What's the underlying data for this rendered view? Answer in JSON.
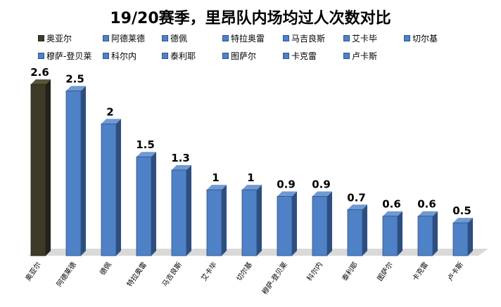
{
  "colors": {
    "first_bar": "#3d3a28",
    "bar": "#4f81c7",
    "bar_side": "#2d4f80",
    "bar_top": "#6f9ad4",
    "floor": "#d9d9d9"
  },
  "chart_data": {
    "type": "bar",
    "title": "19/20赛季，里昂队内场均过人次数对比",
    "categories": [
      "奥亚尔",
      "阿德莱德",
      "德佩",
      "特拉奥雷",
      "马吉良斯",
      "艾卡毕",
      "切尔基",
      "穆萨-登贝莱",
      "科尔内",
      "泰利耶",
      "图萨尔",
      "卡克雷",
      "卢卡斯"
    ],
    "values": [
      2.6,
      2.5,
      2.0,
      1.5,
      1.3,
      1.0,
      1.0,
      0.9,
      0.9,
      0.7,
      0.6,
      0.6,
      0.5
    ],
    "value_labels": [
      "2.6",
      "2.5",
      "2",
      "1.5",
      "1.3",
      "1",
      "1",
      "0.9",
      "0.9",
      "0.7",
      "0.6",
      "0.6",
      "0.5"
    ],
    "legend": [
      "奥亚尔",
      "阿德莱德",
      "德佩",
      "特拉奥雷",
      "马吉良斯",
      "艾卡毕",
      "切尔基",
      "穆萨-登贝莱",
      "科尔内",
      "泰利耶",
      "图萨尔",
      "卡克雷",
      "卢卡斯"
    ],
    "legend_position": "top",
    "grid": false,
    "xlabel": "",
    "ylabel": "",
    "ylim": [
      0,
      2.6
    ]
  }
}
